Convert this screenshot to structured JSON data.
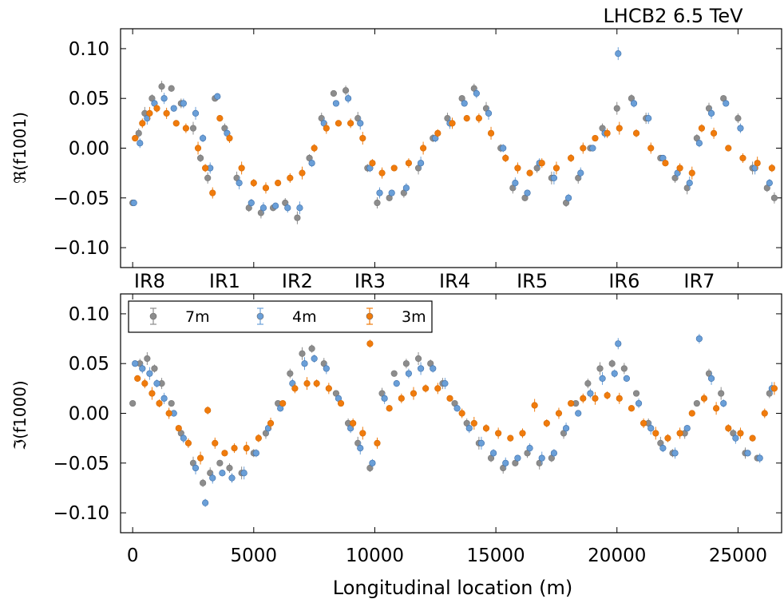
{
  "title": "LHCB2 6.5 TeV",
  "chart_data": [
    {
      "type": "scatter",
      "panel": "top",
      "ylabel": "ℜ(f1001)",
      "xlim": [
        -500,
        26800
      ],
      "ylim": [
        -0.12,
        0.12
      ],
      "yticks": [
        "0.10",
        "0.05",
        "0.00",
        "−0.05",
        "−0.10"
      ],
      "ytick_values": [
        0.1,
        0.05,
        0.0,
        -0.05,
        -0.1
      ],
      "ir_labels": [
        {
          "label": "IR8",
          "x": 700
        },
        {
          "label": "IR1",
          "x": 3800
        },
        {
          "label": "IR2",
          "x": 6800
        },
        {
          "label": "IR3",
          "x": 9800
        },
        {
          "label": "IR4",
          "x": 13300
        },
        {
          "label": "IR5",
          "x": 16500
        },
        {
          "label": "IR6",
          "x": 20300
        },
        {
          "label": "IR7",
          "x": 23400
        }
      ],
      "series": [
        {
          "name": "7m",
          "color": "#8c8c8c",
          "x": [
            0,
            250,
            500,
            800,
            1200,
            1600,
            2000,
            2500,
            2800,
            3100,
            3400,
            3800,
            4300,
            4800,
            5300,
            5800,
            6300,
            6800,
            7300,
            7800,
            8300,
            8800,
            9300,
            9700,
            10100,
            10600,
            11200,
            11800,
            12400,
            13000,
            13600,
            14100,
            14600,
            15200,
            15700,
            16200,
            16700,
            17300,
            17900,
            18400,
            18900,
            19400,
            20000,
            20600,
            21200,
            21800,
            22400,
            22900,
            23300,
            23800,
            24400,
            25000,
            25600,
            26200,
            26500
          ],
          "y": [
            -0.055,
            0.015,
            0.035,
            0.05,
            0.062,
            0.06,
            0.045,
            0.02,
            -0.01,
            -0.03,
            0.05,
            0.02,
            -0.03,
            -0.06,
            -0.065,
            -0.06,
            -0.055,
            -0.07,
            -0.01,
            0.03,
            0.055,
            0.058,
            0.03,
            -0.02,
            -0.055,
            -0.05,
            -0.045,
            -0.02,
            0.01,
            0.03,
            0.05,
            0.06,
            0.04,
            0.0,
            -0.04,
            -0.05,
            -0.02,
            -0.03,
            -0.055,
            -0.03,
            0.0,
            0.02,
            0.04,
            0.05,
            0.03,
            -0.01,
            -0.03,
            -0.04,
            0.01,
            0.04,
            0.05,
            0.03,
            -0.02,
            -0.04,
            -0.05
          ]
        },
        {
          "name": "4m",
          "color": "#6a9fd8",
          "x": [
            50,
            300,
            600,
            900,
            1300,
            1700,
            2100,
            2600,
            2900,
            3200,
            3500,
            3900,
            4400,
            4900,
            5400,
            5900,
            6400,
            6900,
            7400,
            7900,
            8400,
            8900,
            9400,
            9800,
            10200,
            10700,
            11300,
            11900,
            12500,
            13100,
            13700,
            14200,
            14700,
            15300,
            15800,
            16300,
            16800,
            17400,
            18000,
            18500,
            19000,
            19500,
            20050,
            20700,
            21300,
            21900,
            22500,
            23000,
            23400,
            23900,
            24500,
            25100,
            25700,
            26300
          ],
          "y": [
            -0.055,
            0.005,
            0.03,
            0.045,
            0.05,
            0.04,
            0.045,
            0.035,
            0.01,
            -0.02,
            0.052,
            0.015,
            -0.035,
            -0.055,
            -0.06,
            -0.058,
            -0.06,
            -0.06,
            -0.015,
            0.025,
            0.045,
            0.05,
            0.025,
            -0.02,
            -0.045,
            -0.045,
            -0.04,
            -0.015,
            0.01,
            0.025,
            0.045,
            0.055,
            0.035,
            0.0,
            -0.035,
            -0.045,
            -0.015,
            -0.03,
            -0.05,
            -0.025,
            0.0,
            0.015,
            0.095,
            0.045,
            0.03,
            -0.01,
            -0.025,
            -0.035,
            0.005,
            0.035,
            0.045,
            0.02,
            -0.02,
            -0.035
          ]
        },
        {
          "name": "3m",
          "color": "#f07b0c",
          "x": [
            100,
            400,
            700,
            1000,
            1400,
            1800,
            2200,
            2700,
            3000,
            3300,
            3600,
            4000,
            4500,
            5000,
            5500,
            6000,
            6500,
            7000,
            7500,
            8000,
            8500,
            9000,
            9500,
            9900,
            10300,
            10800,
            11400,
            12000,
            12600,
            13200,
            13800,
            14300,
            14800,
            15400,
            15900,
            16400,
            16900,
            17500,
            18100,
            18600,
            19100,
            19600,
            20100,
            20800,
            21400,
            22000,
            22600,
            23100,
            23500,
            24000,
            24600,
            25200,
            25800,
            26400
          ],
          "y": [
            0.01,
            0.025,
            0.035,
            0.04,
            0.035,
            0.025,
            0.02,
            0.0,
            -0.02,
            -0.045,
            0.03,
            0.01,
            -0.02,
            -0.035,
            -0.04,
            -0.035,
            -0.03,
            -0.025,
            0.0,
            0.02,
            0.025,
            0.025,
            0.01,
            -0.015,
            -0.025,
            -0.02,
            -0.015,
            0.0,
            0.015,
            0.025,
            0.03,
            0.03,
            0.015,
            -0.01,
            -0.02,
            -0.025,
            -0.015,
            -0.02,
            -0.01,
            0.0,
            0.01,
            0.015,
            0.02,
            0.015,
            0.0,
            -0.015,
            -0.02,
            -0.025,
            0.02,
            0.015,
            0.0,
            -0.01,
            -0.015,
            -0.02
          ]
        }
      ]
    },
    {
      "type": "scatter",
      "panel": "bottom",
      "ylabel": "ℑ(f1000)",
      "xlabel": "Longitudinal location (m)",
      "xlim": [
        -500,
        26800
      ],
      "ylim": [
        -0.12,
        0.12
      ],
      "yticks": [
        "0.10",
        "0.05",
        "0.00",
        "−0.05",
        "−0.10"
      ],
      "ytick_values": [
        0.1,
        0.05,
        0.0,
        -0.05,
        -0.1
      ],
      "xticks": [
        "0",
        "5000",
        "10000",
        "15000",
        "20000",
        "25000"
      ],
      "xtick_values": [
        0,
        5000,
        10000,
        15000,
        20000,
        25000
      ],
      "legend": {
        "entries": [
          "7m",
          "4m",
          "3m"
        ],
        "placement": "top-left"
      },
      "series": [
        {
          "name": "7m",
          "color": "#8c8c8c",
          "x": [
            0,
            300,
            600,
            900,
            1200,
            1600,
            2000,
            2500,
            2900,
            3200,
            3600,
            4000,
            4500,
            5000,
            5500,
            6000,
            6500,
            7000,
            7400,
            7900,
            8400,
            8900,
            9300,
            9800,
            10300,
            10800,
            11300,
            11800,
            12300,
            12800,
            13300,
            13800,
            14300,
            14800,
            15300,
            15800,
            16300,
            16800,
            17300,
            17800,
            18300,
            18800,
            19300,
            19800,
            20300,
            20800,
            21300,
            21800,
            22300,
            22800,
            23300,
            23800,
            24300,
            24800,
            25300,
            25800,
            26300
          ],
          "y": [
            0.01,
            0.05,
            0.055,
            0.045,
            0.03,
            0.01,
            -0.02,
            -0.05,
            -0.07,
            -0.06,
            -0.05,
            -0.055,
            -0.06,
            -0.04,
            -0.02,
            0.01,
            0.04,
            0.06,
            0.065,
            0.05,
            0.02,
            -0.01,
            -0.03,
            -0.055,
            0.02,
            0.04,
            0.05,
            0.055,
            0.05,
            0.03,
            0.01,
            -0.01,
            -0.03,
            -0.045,
            -0.055,
            -0.05,
            -0.04,
            -0.05,
            -0.045,
            -0.02,
            0.01,
            0.03,
            0.045,
            0.05,
            0.045,
            0.02,
            -0.01,
            -0.03,
            -0.04,
            -0.02,
            0.01,
            0.04,
            0.02,
            -0.02,
            -0.04,
            -0.045,
            0.02
          ]
        },
        {
          "name": "4m",
          "color": "#6a9fd8",
          "x": [
            100,
            400,
            700,
            1000,
            1300,
            1700,
            2100,
            2600,
            3000,
            3300,
            3700,
            4100,
            4600,
            5100,
            5600,
            6100,
            6600,
            7100,
            7500,
            8000,
            8500,
            9000,
            9400,
            9900,
            10400,
            10900,
            11400,
            11900,
            12400,
            12900,
            13400,
            13900,
            14400,
            14900,
            15400,
            15900,
            16400,
            16900,
            17400,
            17900,
            18400,
            18900,
            19400,
            19900,
            20050,
            20400,
            20900,
            21400,
            21900,
            22400,
            22900,
            23400,
            23900,
            24400,
            24900,
            25400,
            25900,
            26400
          ],
          "y": [
            0.05,
            0.045,
            0.04,
            0.03,
            0.015,
            0.0,
            -0.025,
            -0.055,
            -0.09,
            -0.065,
            -0.06,
            -0.065,
            -0.06,
            -0.04,
            -0.015,
            0.005,
            0.03,
            0.05,
            0.055,
            0.045,
            0.015,
            -0.015,
            -0.035,
            -0.05,
            0.015,
            0.03,
            0.04,
            0.045,
            0.045,
            0.03,
            0.005,
            -0.015,
            -0.03,
            -0.04,
            -0.05,
            -0.045,
            -0.035,
            -0.045,
            -0.04,
            -0.015,
            0.0,
            0.02,
            0.035,
            0.04,
            0.07,
            0.035,
            0.01,
            -0.015,
            -0.035,
            -0.04,
            -0.015,
            0.075,
            0.035,
            0.01,
            -0.025,
            -0.04,
            -0.045,
            0.025
          ]
        },
        {
          "name": "3m",
          "color": "#f07b0c",
          "x": [
            200,
            500,
            800,
            1100,
            1500,
            1900,
            2300,
            2800,
            3100,
            3400,
            3800,
            4200,
            4700,
            5200,
            5700,
            6200,
            6700,
            7200,
            7600,
            8100,
            8600,
            9100,
            9500,
            9800,
            10100,
            10600,
            11100,
            11600,
            12100,
            12600,
            13100,
            13600,
            14100,
            14600,
            15100,
            15600,
            16100,
            16600,
            17100,
            17600,
            18100,
            18600,
            19100,
            19600,
            20100,
            20600,
            21100,
            21600,
            22100,
            22600,
            23100,
            23600,
            24100,
            24600,
            25100,
            25600,
            26100,
            26500
          ],
          "y": [
            0.035,
            0.03,
            0.02,
            0.01,
            0.0,
            -0.015,
            -0.03,
            -0.045,
            0.003,
            -0.03,
            -0.04,
            -0.035,
            -0.035,
            -0.025,
            -0.01,
            0.01,
            0.025,
            0.03,
            0.03,
            0.025,
            0.01,
            -0.01,
            -0.02,
            0.07,
            -0.03,
            0.005,
            0.015,
            0.02,
            0.025,
            0.025,
            0.015,
            0.0,
            -0.01,
            -0.015,
            -0.02,
            -0.025,
            -0.02,
            0.008,
            -0.01,
            0.0,
            0.01,
            0.015,
            0.015,
            0.018,
            0.015,
            0.005,
            -0.01,
            -0.02,
            -0.025,
            -0.02,
            0.0,
            0.015,
            0.005,
            -0.015,
            -0.02,
            -0.025,
            0.0,
            0.025
          ]
        }
      ]
    }
  ]
}
